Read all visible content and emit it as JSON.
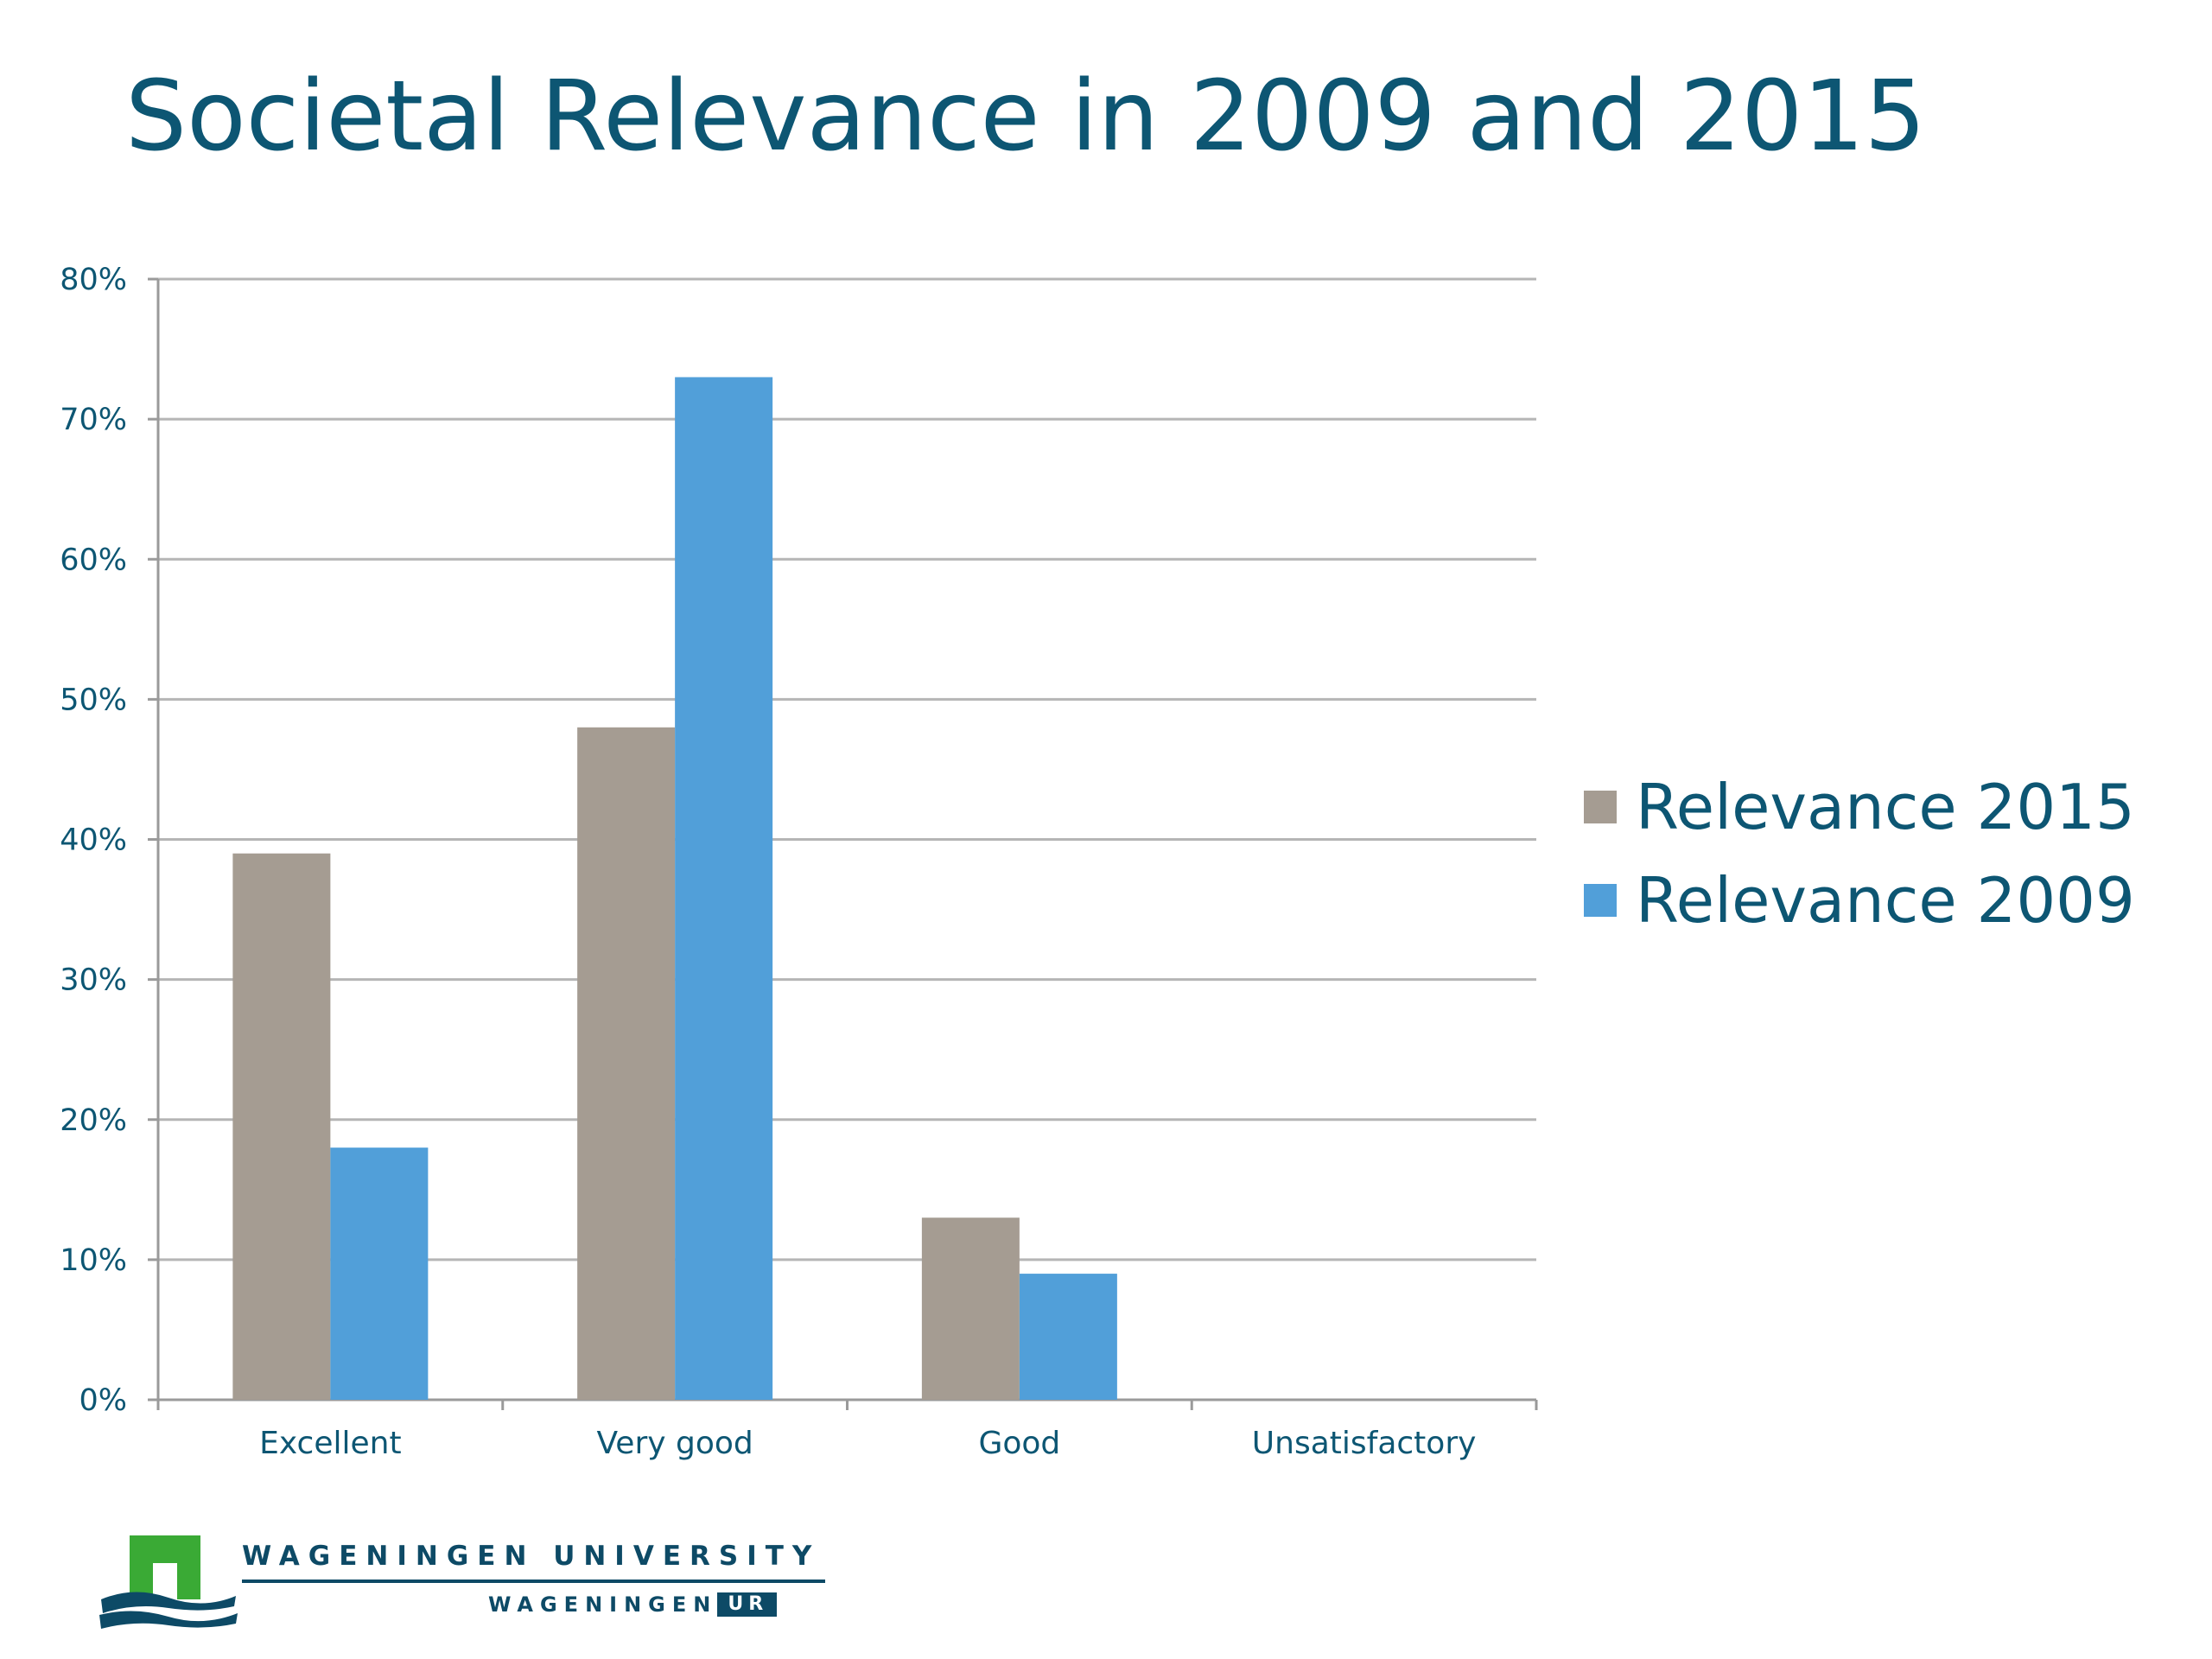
{
  "colors": {
    "title": "#0d5673",
    "axis_text": "#0d5673",
    "grid": "#b5b5b5",
    "axis": "#9a9a9a",
    "series_2015": "#a59c92",
    "series_2009": "#519fd9",
    "logo_green": "#3aaa35",
    "logo_blue": "#0d4a66"
  },
  "chart_data": {
    "type": "bar",
    "title": "Societal Relevance in 2009 and 2015",
    "categories": [
      "Excellent",
      "Very good",
      "Good",
      "Unsatisfactory"
    ],
    "series": [
      {
        "name": "Relevance 2015",
        "color": "#a59c92",
        "values": [
          39,
          48,
          13,
          0
        ]
      },
      {
        "name": "Relevance 2009",
        "color": "#519fd9",
        "values": [
          18,
          73,
          9,
          0
        ]
      }
    ],
    "ylim": [
      0,
      80
    ],
    "y_ticks": [
      0,
      10,
      20,
      30,
      40,
      50,
      60,
      70,
      80
    ],
    "y_tick_labels": [
      "0%",
      "10%",
      "20%",
      "30%",
      "40%",
      "50%",
      "60%",
      "70%",
      "80%"
    ],
    "xlabel": "",
    "ylabel": "",
    "grid": true,
    "legend_position": "right"
  },
  "logo": {
    "university": "WAGENINGEN UNIVERSITY",
    "wageningen": "WAGENINGEN",
    "ur": "UR"
  }
}
